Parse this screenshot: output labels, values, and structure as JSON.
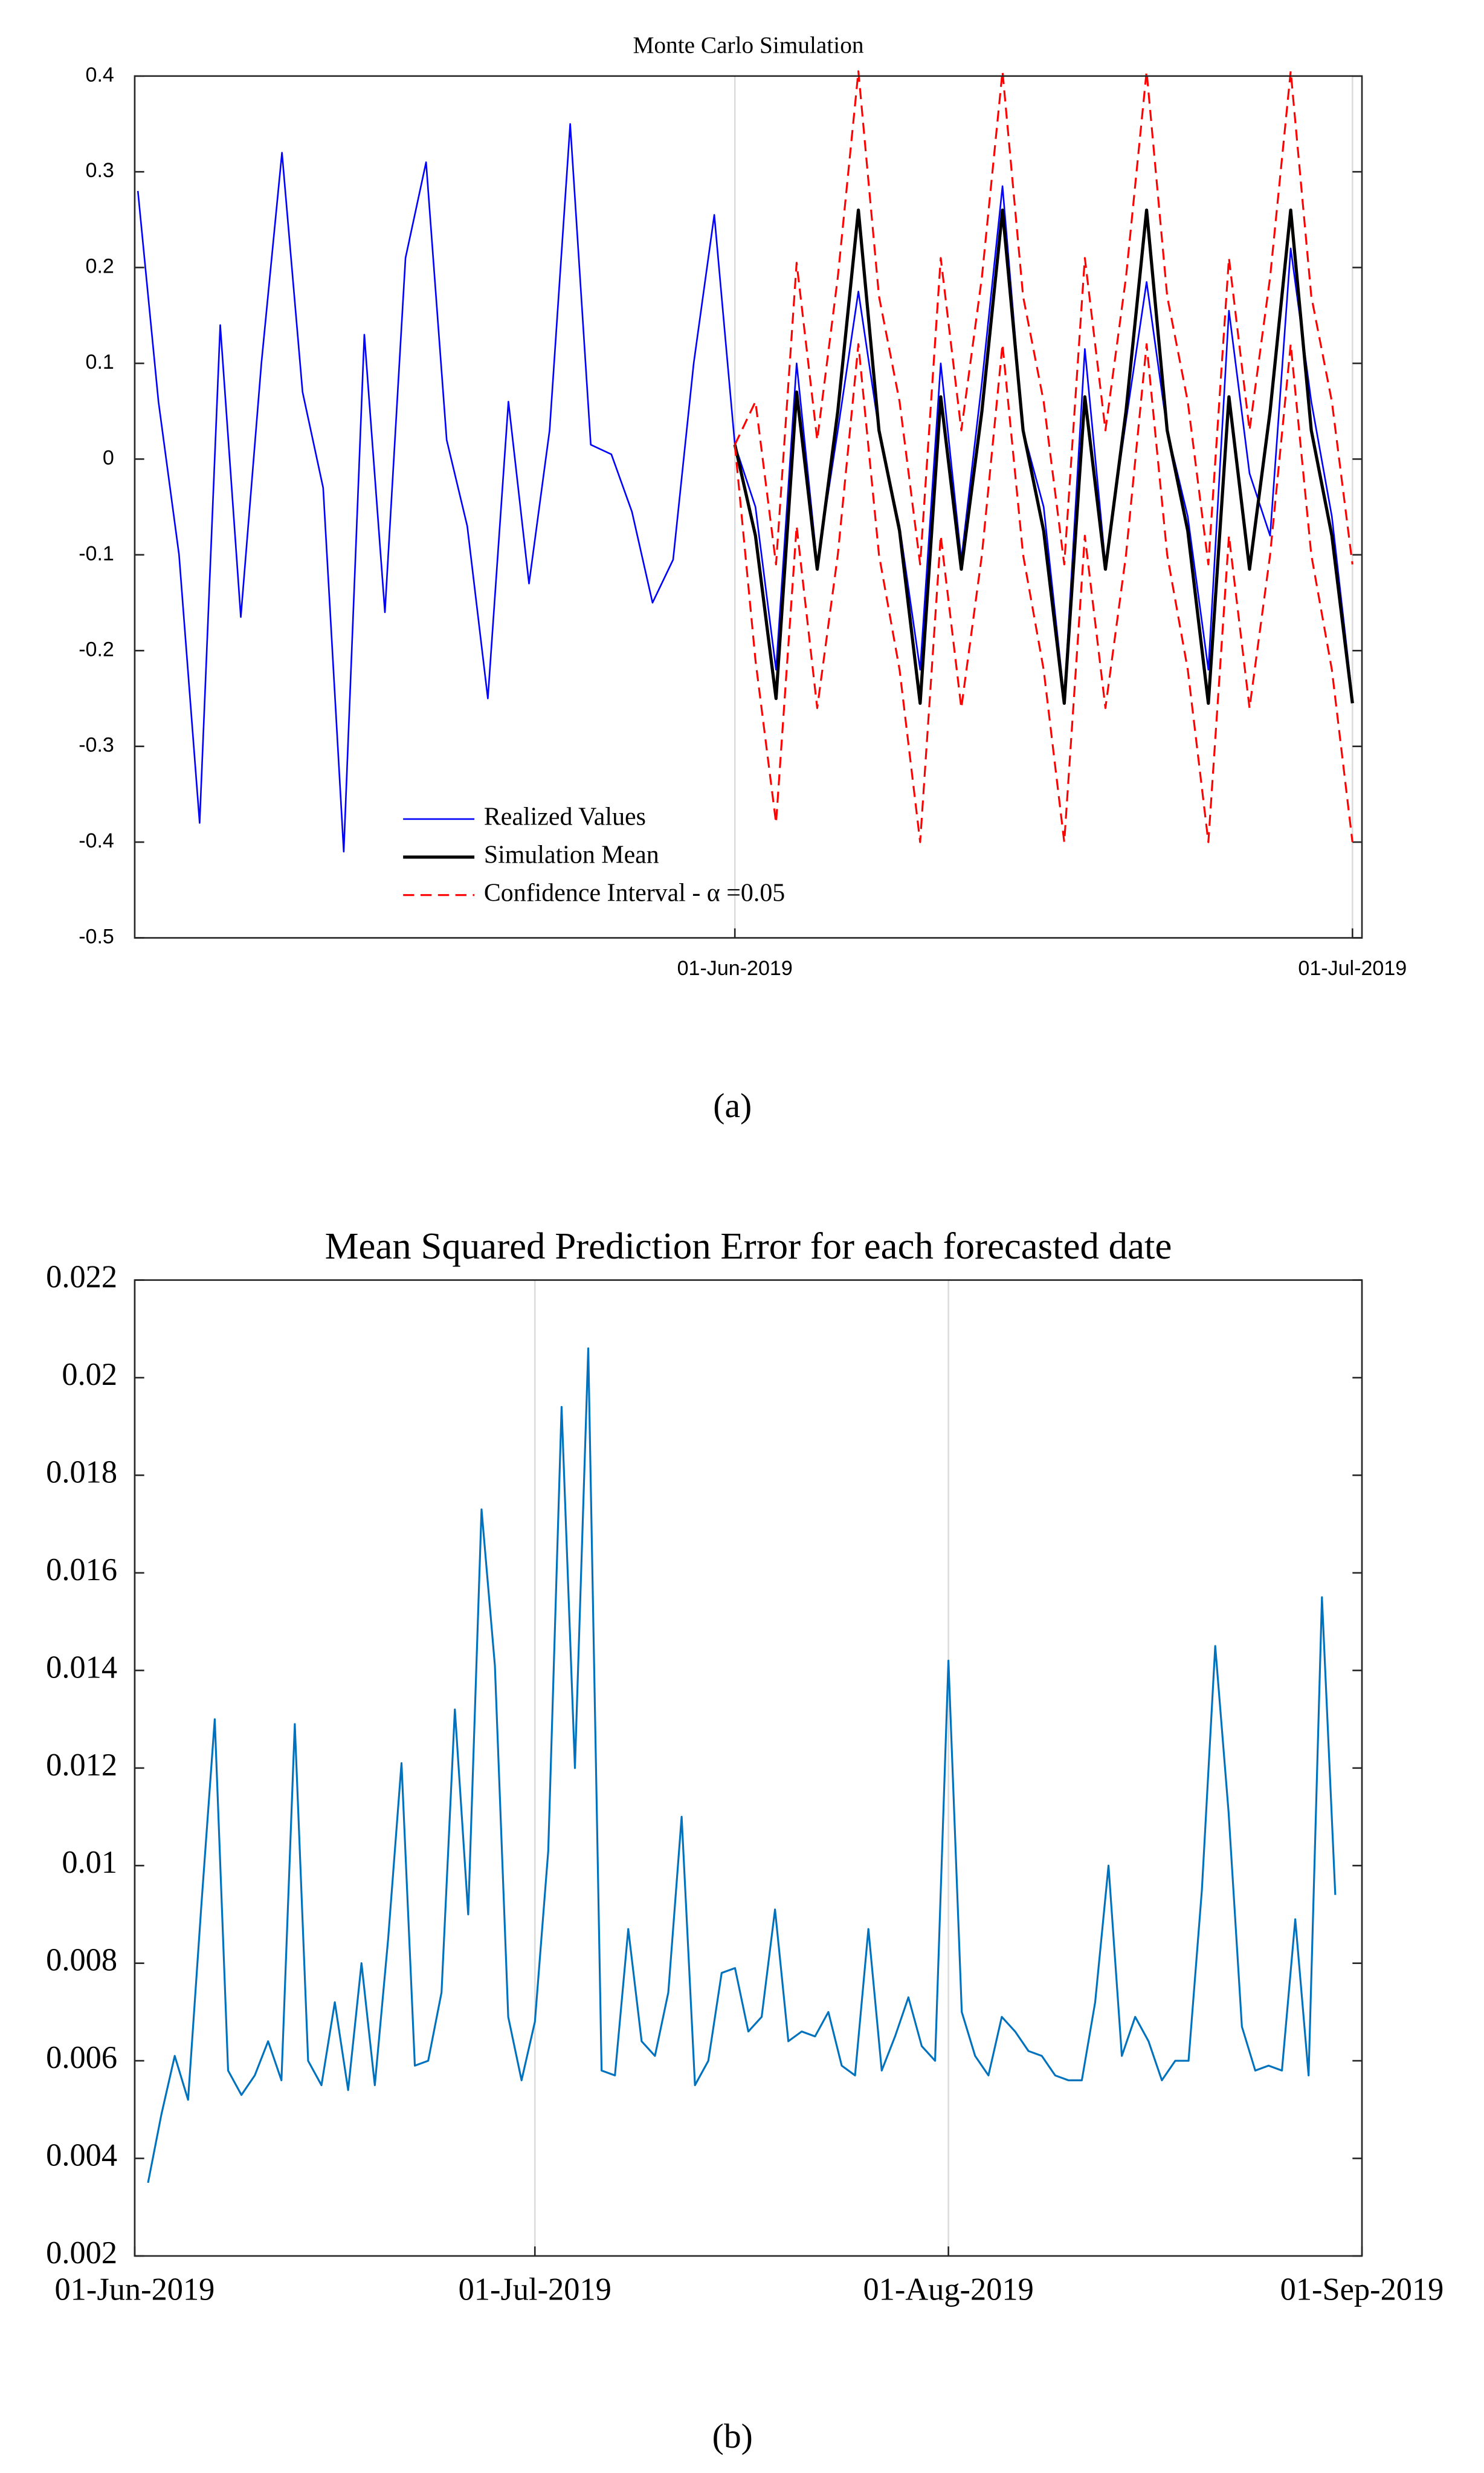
{
  "chart_data": [
    {
      "type": "line",
      "title": "Monte Carlo Simulation",
      "panel_label": "(a)",
      "categories": [
        null,
        null,
        null,
        null,
        null,
        null,
        null,
        null,
        null,
        null,
        null,
        null,
        null,
        null,
        null,
        null,
        null,
        null,
        null,
        null,
        null,
        null,
        null,
        null,
        null,
        null,
        null,
        null,
        null,
        "01-Jun-2019",
        null,
        null,
        null,
        null,
        null,
        null,
        null,
        null,
        null,
        null,
        null,
        null,
        null,
        null,
        null,
        null,
        null,
        null,
        null,
        null,
        null,
        null,
        null,
        null,
        null,
        null,
        null,
        null,
        null,
        "01-Jul-2019"
      ],
      "series": [
        {
          "name": "Realized Values",
          "color": "#0000ff",
          "width": 1,
          "values": [
            0.28,
            0.06,
            -0.1,
            -0.38,
            0.14,
            -0.165,
            0.1,
            0.32,
            0.07,
            -0.03,
            -0.41,
            0.13,
            -0.16,
            0.21,
            0.31,
            0.02,
            -0.07,
            -0.25,
            0.06,
            -0.13,
            0.03,
            0.35,
            0.015,
            0.005,
            -0.055,
            -0.15,
            -0.105,
            0.1,
            0.255,
            0.015,
            -0.05,
            -0.22,
            0.1,
            -0.11,
            0.03,
            0.175,
            0.03,
            -0.07,
            -0.22,
            0.1,
            -0.105,
            0.08,
            0.285,
            0.03,
            -0.05,
            -0.25,
            0.115,
            -0.11,
            0.04,
            0.185,
            0.03,
            -0.06,
            -0.22,
            0.155,
            -0.015,
            -0.08,
            0.22,
            0.06,
            -0.06,
            -0.25
          ]
        },
        {
          "name": "Simulation Mean",
          "color": "#000000",
          "width": 2,
          "values": [
            null,
            null,
            null,
            null,
            null,
            null,
            null,
            null,
            null,
            null,
            null,
            null,
            null,
            null,
            null,
            null,
            null,
            null,
            null,
            null,
            null,
            null,
            null,
            null,
            null,
            null,
            null,
            null,
            null,
            0.015,
            -0.08,
            -0.25,
            0.07,
            -0.115,
            0.05,
            0.26,
            0.03,
            -0.075,
            -0.255,
            0.065,
            -0.115,
            0.05,
            0.26,
            0.03,
            -0.075,
            -0.255,
            0.065,
            -0.115,
            0.05,
            0.26,
            0.03,
            -0.075,
            -0.255,
            0.065,
            -0.115,
            0.05,
            0.26,
            0.03,
            -0.08,
            -0.255
          ]
        },
        {
          "name": "Confidence Interval - α =0.05",
          "color": "#ff0000",
          "width": 1.2,
          "dashed": true,
          "values": [
            null,
            null,
            null,
            null,
            null,
            null,
            null,
            null,
            null,
            null,
            null,
            null,
            null,
            null,
            null,
            null,
            null,
            null,
            null,
            null,
            null,
            null,
            null,
            null,
            null,
            null,
            null,
            null,
            null,
            0.015,
            0.06,
            -0.11,
            0.205,
            0.02,
            0.19,
            0.405,
            0.17,
            0.06,
            -0.11,
            0.21,
            0.03,
            0.19,
            0.405,
            0.17,
            0.06,
            -0.11,
            0.21,
            0.03,
            0.19,
            0.405,
            0.17,
            0.06,
            -0.11,
            0.21,
            0.03,
            0.19,
            0.405,
            0.17,
            0.06,
            -0.11
          ],
          "lower": [
            null,
            null,
            null,
            null,
            null,
            null,
            null,
            null,
            null,
            null,
            null,
            null,
            null,
            null,
            null,
            null,
            null,
            null,
            null,
            null,
            null,
            null,
            null,
            null,
            null,
            null,
            null,
            null,
            null,
            0.015,
            -0.21,
            -0.38,
            -0.07,
            -0.26,
            -0.1,
            0.12,
            -0.1,
            -0.22,
            -0.4,
            -0.08,
            -0.26,
            -0.1,
            0.12,
            -0.1,
            -0.22,
            -0.4,
            -0.08,
            -0.26,
            -0.1,
            0.12,
            -0.1,
            -0.22,
            -0.4,
            -0.08,
            -0.26,
            -0.1,
            0.12,
            -0.1,
            -0.22,
            -0.4
          ]
        }
      ],
      "ylim": [
        -0.5,
        0.4
      ],
      "yticks": [
        -0.5,
        -0.4,
        -0.3,
        -0.2,
        -0.1,
        0,
        0.1,
        0.2,
        0.3,
        0.4
      ],
      "xgrid": true,
      "legend": "lower center"
    },
    {
      "type": "line",
      "title": "Mean Squared Prediction Error for each forecasted date",
      "panel_label": "(b)",
      "categories": [
        "01-Jun-2019",
        null,
        null,
        null,
        null,
        null,
        null,
        null,
        null,
        null,
        null,
        null,
        null,
        null,
        null,
        null,
        null,
        null,
        null,
        null,
        null,
        null,
        null,
        null,
        null,
        null,
        null,
        null,
        null,
        null,
        "01-Jul-2019",
        null,
        null,
        null,
        null,
        null,
        null,
        null,
        null,
        null,
        null,
        null,
        null,
        null,
        null,
        null,
        null,
        null,
        null,
        null,
        null,
        null,
        null,
        null,
        null,
        null,
        null,
        null,
        null,
        null,
        null,
        "01-Aug-2019",
        null,
        null,
        null,
        null,
        null,
        null,
        null,
        null,
        null,
        null,
        null,
        null,
        null,
        null,
        null,
        null,
        null,
        null,
        null,
        null,
        null,
        null,
        null,
        null,
        null,
        null,
        null,
        null,
        null,
        null,
        "01-Sep-2019"
      ],
      "values": [
        null,
        0.0035,
        0.0049,
        0.0061,
        0.0052,
        0.0092,
        0.013,
        0.0058,
        0.0053,
        0.0057,
        0.0064,
        0.0056,
        0.0129,
        0.006,
        0.0055,
        0.0072,
        0.0054,
        0.008,
        0.0055,
        0.0085,
        0.0121,
        0.0059,
        0.006,
        0.0074,
        0.0132,
        0.009,
        0.0173,
        0.0141,
        0.0069,
        0.0056,
        0.0068,
        0.0103,
        0.0194,
        0.012,
        0.0206,
        0.0058,
        0.0057,
        0.0087,
        0.0064,
        0.0061,
        0.0074,
        0.011,
        0.0055,
        0.006,
        0.0078,
        0.0079,
        0.0066,
        0.0069,
        0.0091,
        0.0064,
        0.0066,
        0.0065,
        0.007,
        0.0059,
        0.0057,
        0.0087,
        0.0058,
        0.0065,
        0.0073,
        0.0063,
        0.006,
        0.0142,
        0.007,
        0.0061,
        0.0057,
        0.0069,
        0.0066,
        0.0062,
        0.0061,
        0.0057,
        0.0056,
        0.0056,
        0.0072,
        0.01,
        0.0061,
        0.0069,
        0.0064,
        0.0056,
        0.006,
        0.006,
        0.0095,
        0.0145,
        0.0111,
        0.0067,
        0.0058,
        0.0059,
        0.0058,
        0.0089,
        0.0057,
        0.0155,
        0.0094,
        null,
        null
      ],
      "color": "#0072bd",
      "ylim": [
        0.002,
        0.022
      ],
      "yticks": [
        0.002,
        0.004,
        0.006,
        0.008,
        0.01,
        0.012,
        0.014,
        0.016,
        0.018,
        0.02,
        0.022
      ],
      "xgrid": true
    }
  ]
}
